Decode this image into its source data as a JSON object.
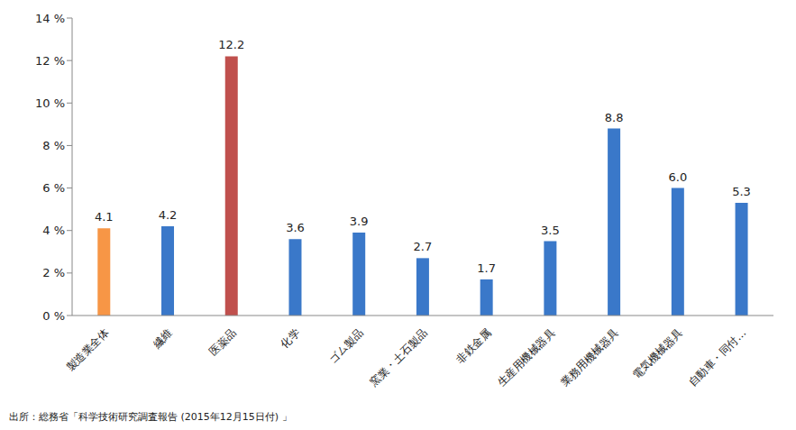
{
  "chart_data": {
    "type": "bar",
    "source": "出所：総務省「科学技術研究調査報告 (2015年12月15日付) 」",
    "categories": [
      "製造業全体",
      "繊維",
      "医薬品",
      "化学",
      "ゴム製品",
      "窯業・土石製品",
      "非鉄金属",
      "生産用機械器具",
      "業務用機械器具",
      "電気機械器具",
      "自動車・同付…"
    ],
    "values": [
      4.1,
      4.2,
      12.2,
      3.6,
      3.9,
      2.7,
      1.7,
      3.5,
      8.8,
      6.0,
      5.3
    ],
    "value_labels": [
      "4.1",
      "4.2",
      "12.2",
      "3.6",
      "3.9",
      "2.7",
      "1.7",
      "3.5",
      "8.8",
      "6.0",
      "5.3"
    ],
    "colors": [
      "#f79646",
      "#3a78c9",
      "#c0504d",
      "#3a78c9",
      "#3a78c9",
      "#3a78c9",
      "#3a78c9",
      "#3a78c9",
      "#3a78c9",
      "#3a78c9",
      "#3a78c9"
    ],
    "ylim": [
      0,
      14
    ],
    "yticks": [
      {
        "value": 0,
        "label": "0 %"
      },
      {
        "value": 2,
        "label": "2 %"
      },
      {
        "value": 4,
        "label": "4 %"
      },
      {
        "value": 6,
        "label": "6 %"
      },
      {
        "value": 8,
        "label": "8 %"
      },
      {
        "value": 10,
        "label": "10 %"
      },
      {
        "value": 12,
        "label": "12 %"
      },
      {
        "value": 14,
        "label": "14 %"
      }
    ],
    "grid": false,
    "data_labels": true
  }
}
